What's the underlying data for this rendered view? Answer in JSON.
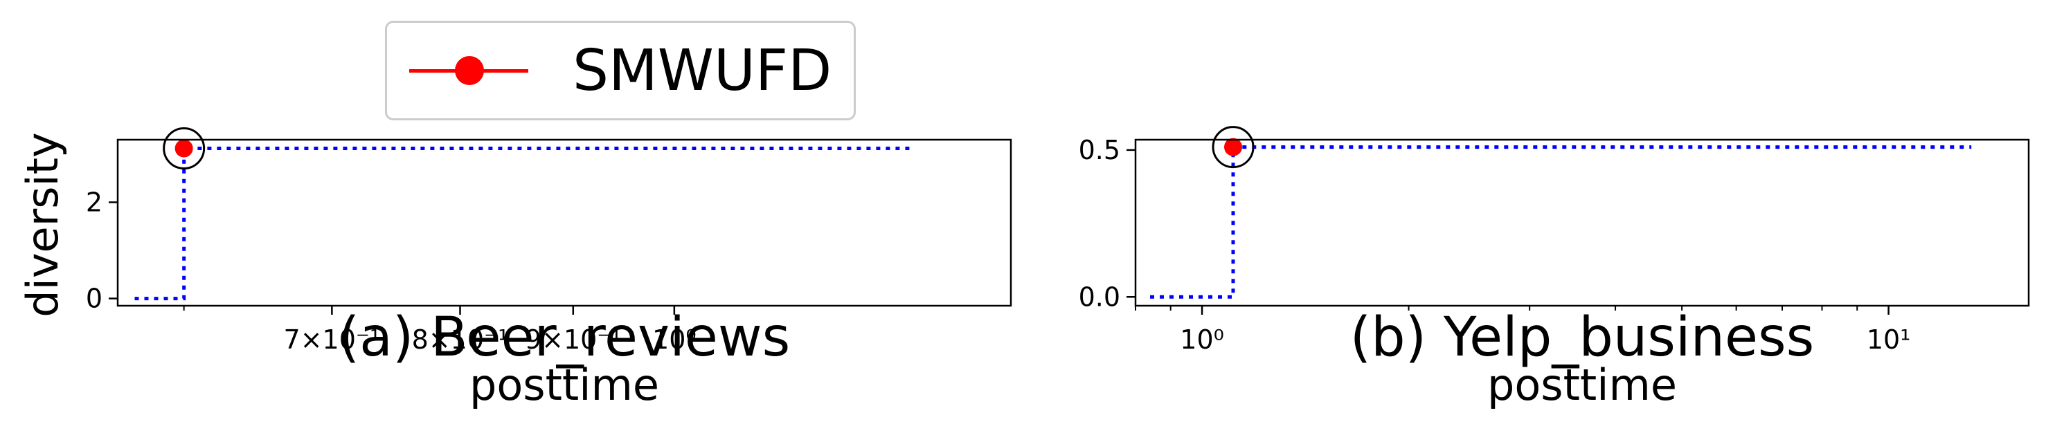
{
  "legend": {
    "label": "SMWUFD",
    "color": "#ff0000"
  },
  "colors": {
    "step_line": "#0000ff",
    "point": "#ff0000",
    "circle": "#000000"
  },
  "chart_data": [
    {
      "type": "line",
      "caption": "(a) Beer_reviews",
      "xlabel": "posttime",
      "ylabel": "diversity",
      "xscale": "log",
      "xlim": [
        0.56,
        1.42
      ],
      "ylim": [
        -0.15,
        3.3
      ],
      "xticks": [
        {
          "value": 0.7,
          "label": "7×10⁻¹"
        },
        {
          "value": 0.8,
          "label": "8×10⁻¹"
        },
        {
          "value": 0.9,
          "label": "9×10⁻¹"
        },
        {
          "value": 1.0,
          "label": "10⁰"
        }
      ],
      "yticks": [
        {
          "value": 0,
          "label": "0"
        },
        {
          "value": 2,
          "label": "2"
        }
      ],
      "series": [
        {
          "style": "dotted-step",
          "x": [
            0.57,
            0.6,
            0.6,
            1.28
          ],
          "y": [
            0,
            0,
            3.12,
            3.12
          ]
        }
      ],
      "points": [
        {
          "series": "SMWUFD",
          "x": 0.6,
          "y": 3.12
        }
      ],
      "circled_point": {
        "x": 0.6,
        "y": 3.12
      }
    },
    {
      "type": "line",
      "caption": "(b) Yelp_business",
      "xlabel": "posttime",
      "ylabel": "",
      "xscale": "log",
      "xlim": [
        0.8,
        16
      ],
      "ylim": [
        -0.03,
        0.535
      ],
      "xticks": [
        {
          "value": 1,
          "label": "10⁰"
        },
        {
          "value": 10,
          "label": "10¹"
        }
      ],
      "yticks": [
        {
          "value": 0,
          "label": "0.0"
        },
        {
          "value": 0.5,
          "label": "0.5"
        }
      ],
      "series": [
        {
          "style": "dotted-step",
          "x": [
            0.84,
            1.11,
            1.11,
            13.2
          ],
          "y": [
            0,
            0,
            0.51,
            0.51
          ]
        }
      ],
      "points": [
        {
          "series": "SMWUFD",
          "x": 1.11,
          "y": 0.51
        }
      ],
      "circled_point": {
        "x": 1.11,
        "y": 0.51
      }
    }
  ]
}
